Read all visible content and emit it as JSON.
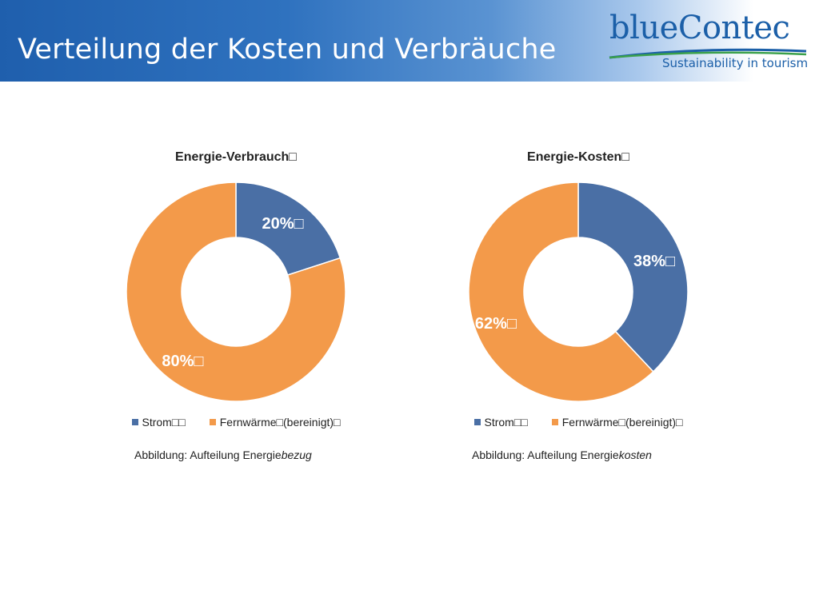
{
  "slide": {
    "title": "Verteilung der Kosten und Verbräuche"
  },
  "logo": {
    "brand_blue": "blue",
    "brand_contec": "Contec",
    "tagline": "Sustainability in tourism"
  },
  "colors": {
    "header_blue": "#1f5fad",
    "strom": "#4a6fa5",
    "fernwaerme": "#f39a4a",
    "logo_blue": "#1b5fa8",
    "logo_green": "#3aa04a"
  },
  "chart_data": [
    {
      "type": "pie",
      "variant": "donut",
      "title": "Energie-Verbrauch□",
      "categories": [
        "Strom□□",
        "Fernwärme□(bereinigt)□"
      ],
      "values": [
        20,
        80
      ],
      "data_labels": [
        "20%□",
        "80%□"
      ],
      "legend_position": "bottom",
      "caption_prefix": "Abbildung: Aufteilung Energie",
      "caption_italic": "bezug"
    },
    {
      "type": "pie",
      "variant": "donut",
      "title": "Energie-Kosten□",
      "categories": [
        "Strom□□",
        "Fernwärme□(bereinigt)□"
      ],
      "values": [
        38,
        62
      ],
      "data_labels": [
        "38%□",
        "62%□"
      ],
      "legend_position": "bottom",
      "caption_prefix": "Abbildung: Aufteilung Energie",
      "caption_italic": "kosten"
    }
  ]
}
